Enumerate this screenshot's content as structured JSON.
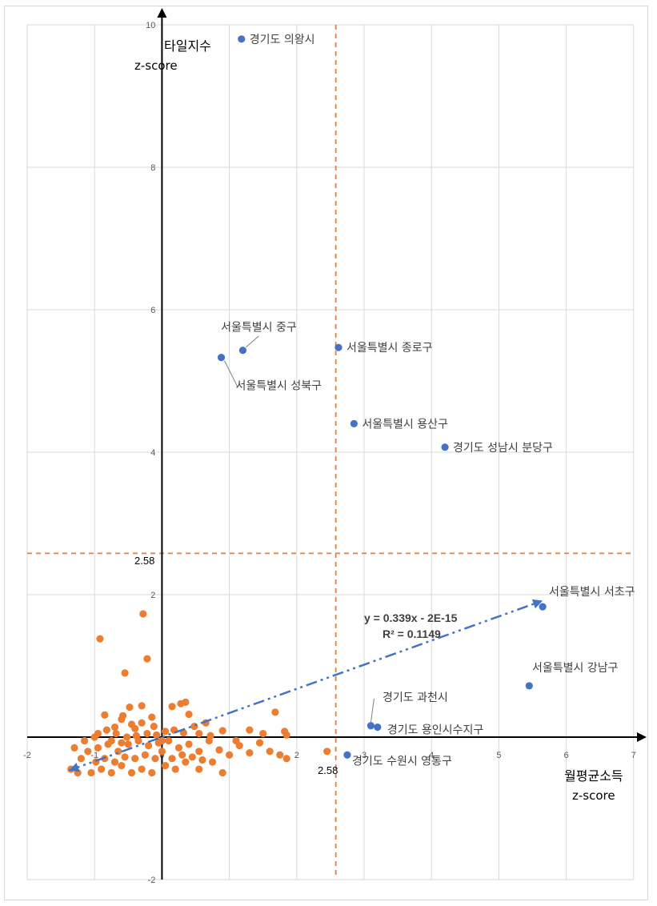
{
  "chart_data": {
    "type": "scatter",
    "xlabel": "월평균소득",
    "xlabel_sub": "z-score",
    "ylabel": "타일지수",
    "ylabel_sub": "z-score",
    "xlim": [
      -2,
      7
    ],
    "ylim": [
      -2,
      10
    ],
    "x_ticks": [
      "-2",
      "-1",
      "0",
      "1",
      "2",
      "3",
      "4",
      "5",
      "6",
      "7"
    ],
    "y_ticks": [
      "-2",
      "0",
      "2",
      "4",
      "6",
      "8",
      "10"
    ],
    "grid": true,
    "threshold_x": 2.58,
    "threshold_y": 2.58,
    "threshold_x_label": "2.58",
    "threshold_y_label": "2.58",
    "threshold_color": "#ed7d31",
    "trendline": {
      "slope": 0.339,
      "intercept": 0,
      "x_range": [
        -1.38,
        5.65
      ],
      "equation": "y = 0.339x - 2E-15",
      "r_squared": "R² = 0.1149",
      "color": "#4472c4"
    },
    "labeled_points": [
      {
        "name": "경기도 의왕시",
        "x": 1.18,
        "y": 9.8
      },
      {
        "name": "서울특별시 중구",
        "x": 1.2,
        "y": 5.43
      },
      {
        "name": "서울특별시 성북구",
        "x": 0.88,
        "y": 5.33
      },
      {
        "name": "서울특별시 종로구",
        "x": 2.62,
        "y": 5.47
      },
      {
        "name": "서울특별시 용산구",
        "x": 2.85,
        "y": 4.4
      },
      {
        "name": "경기도 성남시 분당구",
        "x": 4.2,
        "y": 4.07
      },
      {
        "name": "서울특별시 서초구",
        "x": 5.65,
        "y": 1.83
      },
      {
        "name": "서울특별시 강남구",
        "x": 5.45,
        "y": 0.72
      },
      {
        "name": "경기도 과천시",
        "x": 3.1,
        "y": 0.16
      },
      {
        "name": "경기도 용인시수지구",
        "x": 3.2,
        "y": 0.14
      },
      {
        "name": "경기도 수원시 영통구",
        "x": 2.75,
        "y": -0.25
      }
    ],
    "labeled_color": "#4472c4",
    "other_color": "#ed7d31",
    "other_points": [
      {
        "x": -0.28,
        "y": 1.73
      },
      {
        "x": -0.92,
        "y": 1.38
      },
      {
        "x": -0.22,
        "y": 1.1
      },
      {
        "x": -0.55,
        "y": 0.9
      },
      {
        "x": 0.28,
        "y": 0.47
      },
      {
        "x": 0.35,
        "y": 0.49
      },
      {
        "x": 0.15,
        "y": 0.43
      },
      {
        "x": 0.4,
        "y": 0.32
      },
      {
        "x": -0.3,
        "y": 0.44
      },
      {
        "x": -0.48,
        "y": 0.42
      },
      {
        "x": -0.85,
        "y": 0.31
      },
      {
        "x": -0.6,
        "y": 0.25
      },
      {
        "x": -0.15,
        "y": 0.28
      },
      {
        "x": 1.68,
        "y": 0.35
      },
      {
        "x": 1.82,
        "y": 0.08
      },
      {
        "x": 1.85,
        "y": 0.03
      },
      {
        "x": 0.9,
        "y": 0.09
      },
      {
        "x": 0.72,
        "y": 0.02
      },
      {
        "x": 0.55,
        "y": 0.05
      },
      {
        "x": -0.4,
        "y": 0.12
      },
      {
        "x": -0.7,
        "y": 0.14
      },
      {
        "x": -1.0,
        "y": 0.0
      },
      {
        "x": -1.15,
        "y": -0.05
      },
      {
        "x": -1.1,
        "y": -0.2
      },
      {
        "x": -0.95,
        "y": -0.15
      },
      {
        "x": -0.8,
        "y": -0.1
      },
      {
        "x": -0.65,
        "y": -0.2
      },
      {
        "x": -0.5,
        "y": -0.1
      },
      {
        "x": -0.35,
        "y": -0.05
      },
      {
        "x": -0.2,
        "y": -0.12
      },
      {
        "x": -0.05,
        "y": -0.08
      },
      {
        "x": 0.1,
        "y": -0.05
      },
      {
        "x": 0.25,
        "y": -0.15
      },
      {
        "x": 0.4,
        "y": -0.1
      },
      {
        "x": 0.55,
        "y": -0.2
      },
      {
        "x": 0.7,
        "y": -0.05
      },
      {
        "x": 0.85,
        "y": -0.18
      },
      {
        "x": 1.0,
        "y": -0.25
      },
      {
        "x": 1.15,
        "y": -0.12
      },
      {
        "x": 1.3,
        "y": -0.22
      },
      {
        "x": 1.45,
        "y": -0.08
      },
      {
        "x": 1.6,
        "y": -0.2
      },
      {
        "x": 1.75,
        "y": -0.25
      },
      {
        "x": 1.85,
        "y": -0.3
      },
      {
        "x": 2.45,
        "y": -0.2
      },
      {
        "x": -1.35,
        "y": -0.45
      },
      {
        "x": -1.25,
        "y": -0.5
      },
      {
        "x": -1.05,
        "y": -0.5
      },
      {
        "x": -0.9,
        "y": -0.45
      },
      {
        "x": -0.75,
        "y": -0.5
      },
      {
        "x": -0.6,
        "y": -0.4
      },
      {
        "x": -0.45,
        "y": -0.5
      },
      {
        "x": -0.3,
        "y": -0.45
      },
      {
        "x": -0.15,
        "y": -0.5
      },
      {
        "x": 0.05,
        "y": -0.4
      },
      {
        "x": 0.2,
        "y": -0.45
      },
      {
        "x": 0.35,
        "y": -0.35
      },
      {
        "x": 0.55,
        "y": -0.45
      },
      {
        "x": 0.75,
        "y": -0.35
      },
      {
        "x": 0.9,
        "y": -0.5
      },
      {
        "x": -0.85,
        "y": -0.3
      },
      {
        "x": -0.7,
        "y": -0.35
      },
      {
        "x": -0.55,
        "y": -0.28
      },
      {
        "x": -0.4,
        "y": -0.3
      },
      {
        "x": -0.25,
        "y": -0.25
      },
      {
        "x": -0.1,
        "y": -0.3
      },
      {
        "x": 0.0,
        "y": -0.2
      },
      {
        "x": 0.15,
        "y": -0.3
      },
      {
        "x": 0.3,
        "y": -0.25
      },
      {
        "x": 0.45,
        "y": -0.28
      },
      {
        "x": 0.6,
        "y": -0.32
      },
      {
        "x": -0.95,
        "y": 0.05
      },
      {
        "x": -0.82,
        "y": 0.1
      },
      {
        "x": -0.68,
        "y": 0.05
      },
      {
        "x": -0.52,
        "y": 0.0
      },
      {
        "x": -0.38,
        "y": 0.02
      },
      {
        "x": -0.22,
        "y": 0.05
      },
      {
        "x": -0.08,
        "y": 0.03
      },
      {
        "x": 0.05,
        "y": 0.08
      },
      {
        "x": 0.18,
        "y": 0.1
      },
      {
        "x": 0.32,
        "y": 0.06
      },
      {
        "x": 0.48,
        "y": 0.15
      },
      {
        "x": -0.75,
        "y": -0.05
      },
      {
        "x": -0.6,
        "y": -0.08
      },
      {
        "x": -0.45,
        "y": 0.18
      },
      {
        "x": -0.3,
        "y": 0.2
      },
      {
        "x": -0.58,
        "y": 0.3
      },
      {
        "x": 1.3,
        "y": 0.1
      },
      {
        "x": 1.5,
        "y": 0.05
      },
      {
        "x": 1.1,
        "y": -0.05
      },
      {
        "x": -1.2,
        "y": -0.3
      },
      {
        "x": -1.3,
        "y": -0.15
      },
      {
        "x": -0.98,
        "y": -0.35
      },
      {
        "x": 0.0,
        "y": -0.05
      },
      {
        "x": -0.12,
        "y": 0.15
      },
      {
        "x": 0.65,
        "y": 0.2
      }
    ]
  }
}
